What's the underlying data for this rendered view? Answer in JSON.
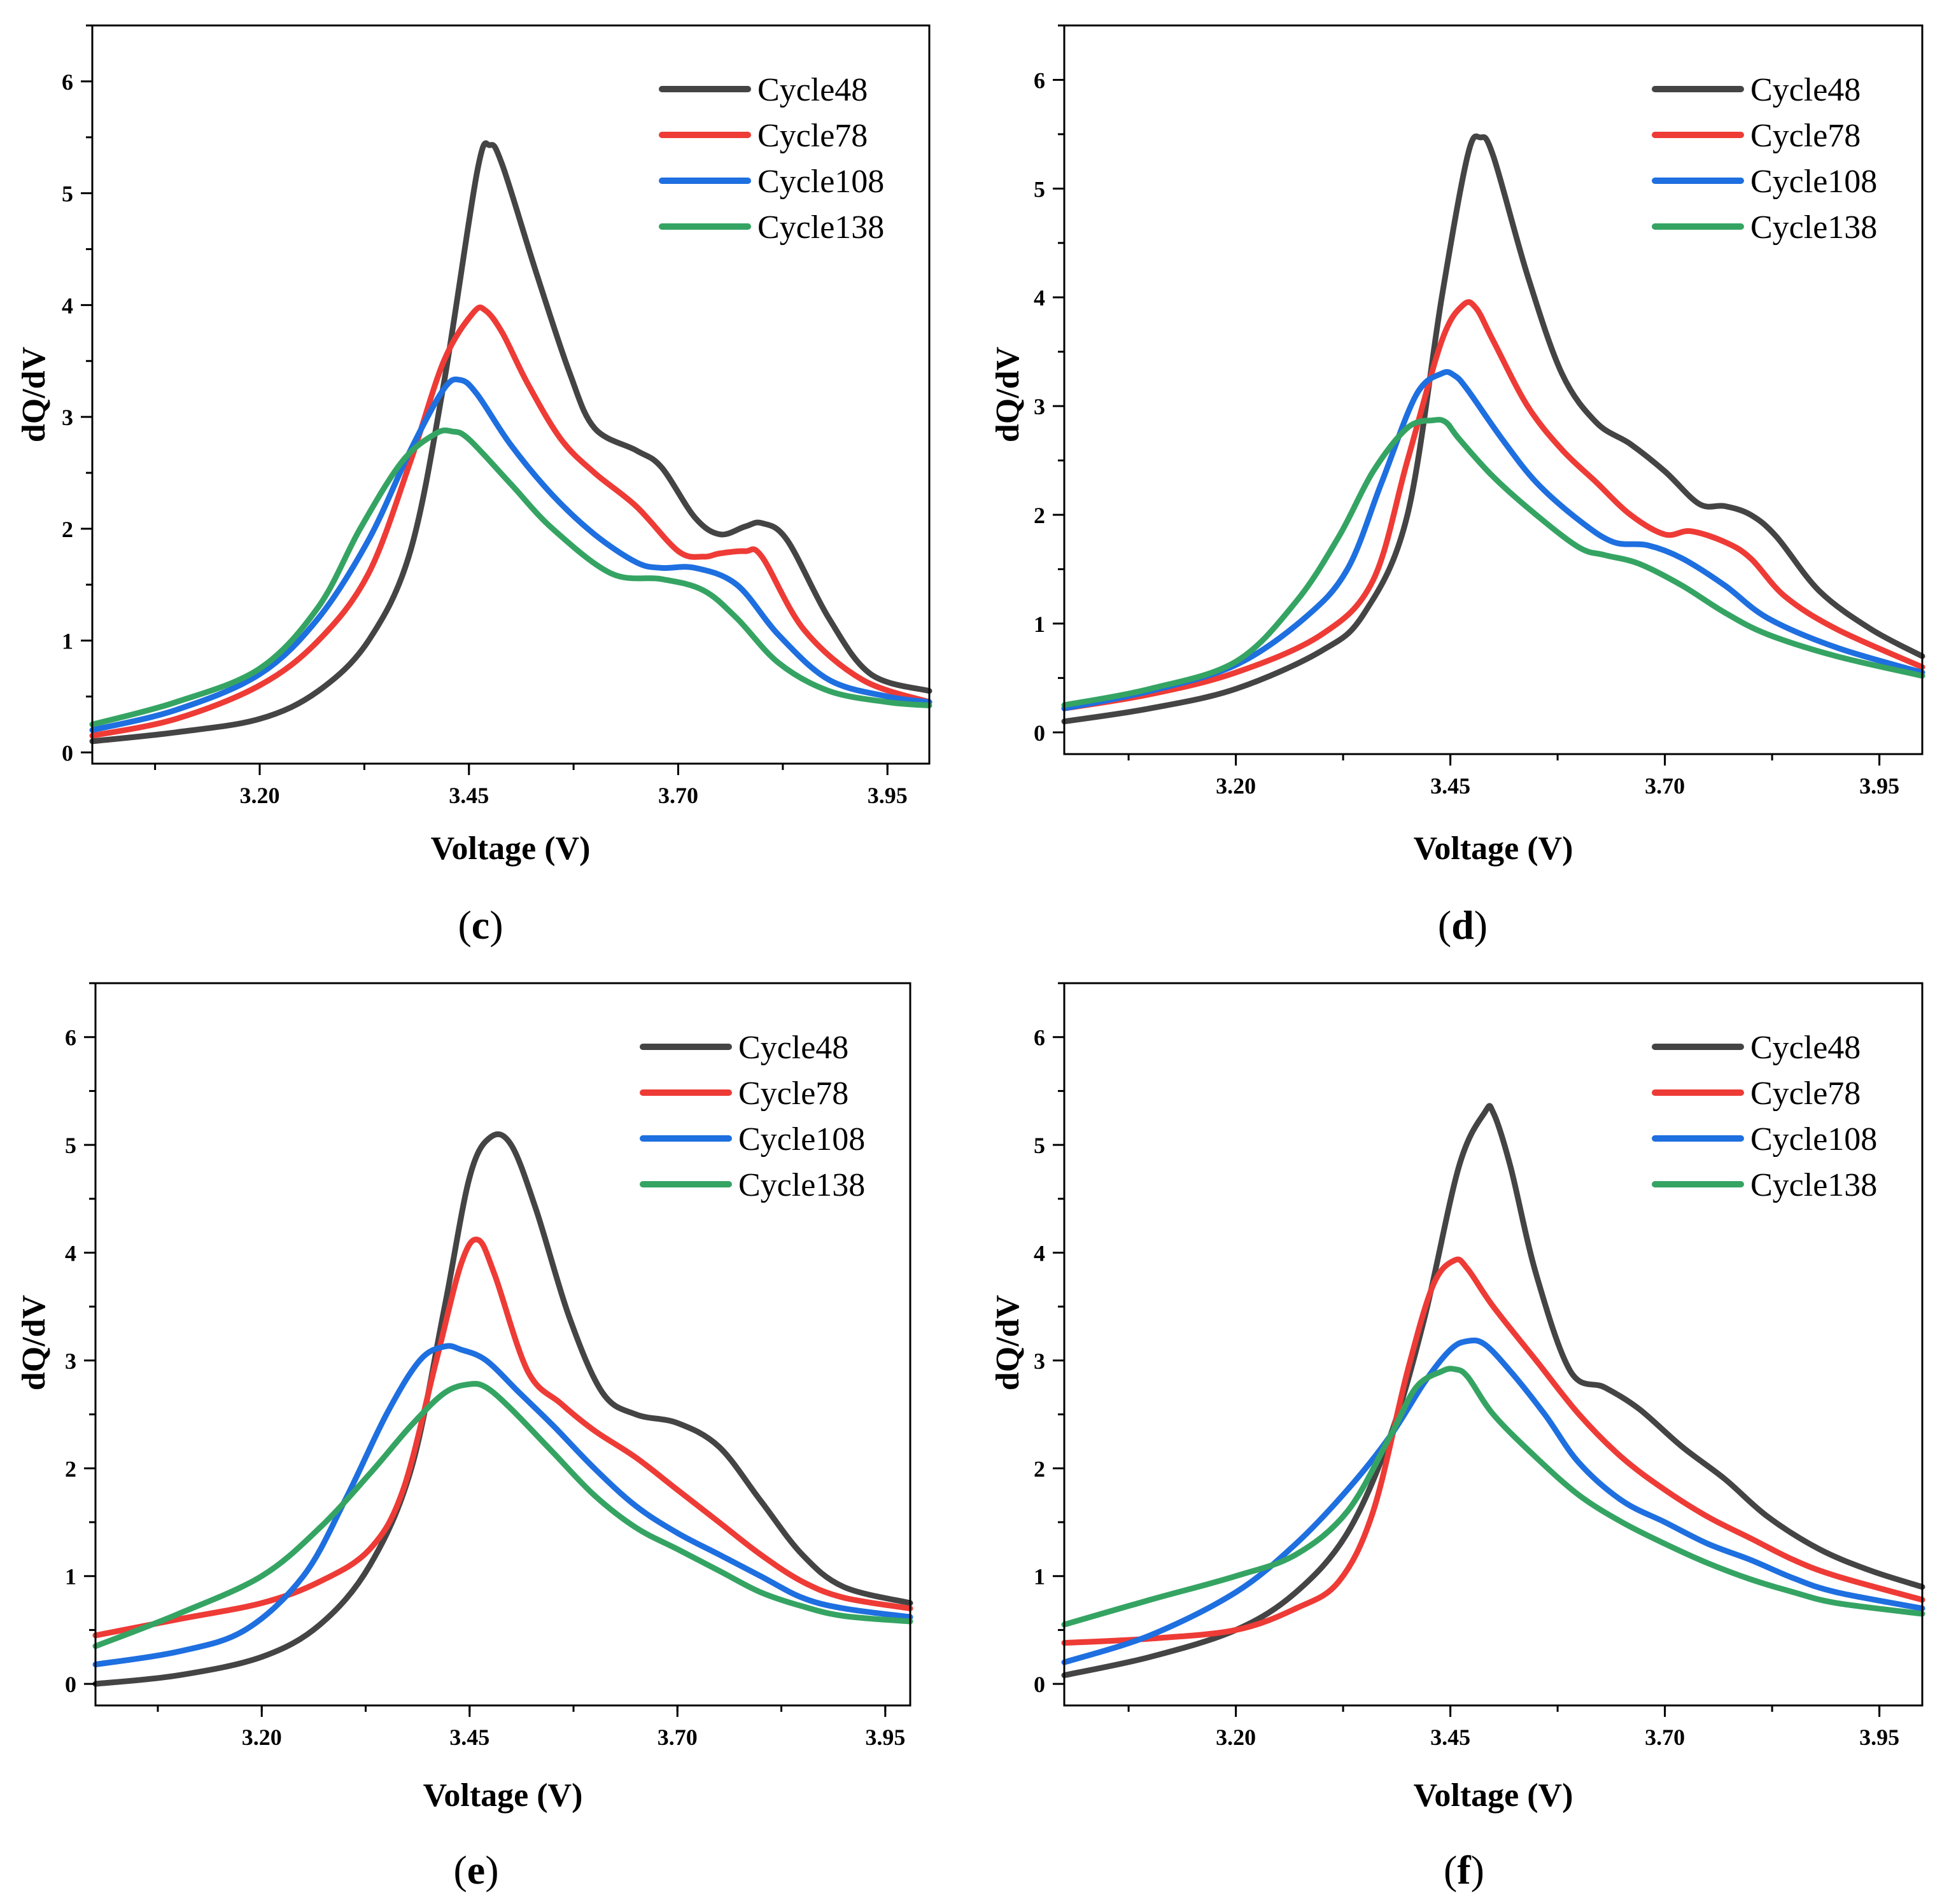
{
  "colors": {
    "Cycle48": "#444444",
    "Cycle78": "#ee3b36",
    "Cycle108": "#1e6fe0",
    "Cycle138": "#35a463"
  },
  "chart_data": [
    {
      "type": "line",
      "panel_label": "c",
      "xlabel": "Voltage (V)",
      "ylabel": "dQ/dV",
      "xlim": [
        3.0,
        4.0
      ],
      "ylim": [
        -0.1,
        6.5
      ],
      "xticks": [
        "3.20",
        "3.45",
        "3.70",
        "3.95"
      ],
      "yticks": [
        "0",
        "1",
        "2",
        "3",
        "4",
        "5",
        "6"
      ],
      "legend_position": "top-right",
      "series": [
        {
          "name": "Cycle48",
          "x": [
            3.0,
            3.1,
            3.2,
            3.27,
            3.33,
            3.38,
            3.42,
            3.46,
            3.475,
            3.49,
            3.53,
            3.57,
            3.6,
            3.65,
            3.68,
            3.72,
            3.75,
            3.78,
            3.8,
            3.83,
            3.88,
            3.93,
            4.0
          ],
          "y": [
            0.1,
            0.18,
            0.3,
            0.55,
            1.0,
            1.8,
            3.3,
            5.2,
            5.43,
            5.25,
            4.3,
            3.4,
            2.9,
            2.7,
            2.55,
            2.1,
            1.95,
            2.02,
            2.05,
            1.9,
            1.2,
            0.7,
            0.55
          ]
        },
        {
          "name": "Cycle78",
          "x": [
            3.0,
            3.1,
            3.2,
            3.27,
            3.33,
            3.38,
            3.42,
            3.455,
            3.47,
            3.49,
            3.52,
            3.56,
            3.6,
            3.65,
            3.7,
            3.73,
            3.75,
            3.78,
            3.8,
            3.85,
            3.92,
            4.0
          ],
          "y": [
            0.15,
            0.3,
            0.6,
            1.0,
            1.6,
            2.6,
            3.5,
            3.93,
            3.95,
            3.75,
            3.3,
            2.8,
            2.5,
            2.2,
            1.8,
            1.75,
            1.78,
            1.8,
            1.75,
            1.1,
            0.65,
            0.45
          ]
        },
        {
          "name": "Cycle108",
          "x": [
            3.0,
            3.1,
            3.2,
            3.27,
            3.33,
            3.38,
            3.42,
            3.44,
            3.46,
            3.5,
            3.55,
            3.6,
            3.65,
            3.68,
            3.72,
            3.77,
            3.82,
            3.88,
            3.95,
            4.0
          ],
          "y": [
            0.2,
            0.38,
            0.7,
            1.2,
            1.9,
            2.7,
            3.25,
            3.33,
            3.2,
            2.75,
            2.3,
            1.95,
            1.7,
            1.65,
            1.65,
            1.5,
            1.05,
            0.65,
            0.5,
            0.45
          ]
        },
        {
          "name": "Cycle138",
          "x": [
            3.0,
            3.1,
            3.2,
            3.27,
            3.32,
            3.37,
            3.41,
            3.43,
            3.45,
            3.5,
            3.55,
            3.62,
            3.68,
            3.73,
            3.77,
            3.82,
            3.88,
            3.95,
            4.0
          ],
          "y": [
            0.25,
            0.45,
            0.75,
            1.3,
            2.0,
            2.6,
            2.85,
            2.87,
            2.8,
            2.4,
            2.0,
            1.6,
            1.55,
            1.45,
            1.2,
            0.8,
            0.55,
            0.45,
            0.42
          ]
        }
      ]
    },
    {
      "type": "line",
      "panel_label": "d",
      "xlabel": "Voltage (V)",
      "ylabel": "dQ/dV",
      "xlim": [
        3.0,
        4.0
      ],
      "ylim": [
        -0.2,
        6.5
      ],
      "xticks": [
        "3.20",
        "3.45",
        "3.70",
        "3.95"
      ],
      "yticks": [
        "0",
        "1",
        "2",
        "3",
        "4",
        "5",
        "6"
      ],
      "legend_position": "top-right",
      "series": [
        {
          "name": "Cycle48",
          "x": [
            3.0,
            3.1,
            3.2,
            3.3,
            3.35,
            3.4,
            3.44,
            3.47,
            3.485,
            3.5,
            3.54,
            3.58,
            3.62,
            3.66,
            3.7,
            3.74,
            3.77,
            3.8,
            3.83,
            3.88,
            3.94,
            4.0
          ],
          "y": [
            0.1,
            0.22,
            0.4,
            0.75,
            1.1,
            2.0,
            4.0,
            5.3,
            5.47,
            5.3,
            4.2,
            3.3,
            2.85,
            2.65,
            2.4,
            2.1,
            2.08,
            2.0,
            1.8,
            1.3,
            0.95,
            0.7
          ]
        },
        {
          "name": "Cycle78",
          "x": [
            3.0,
            3.1,
            3.2,
            3.3,
            3.36,
            3.4,
            3.44,
            3.465,
            3.48,
            3.5,
            3.54,
            3.58,
            3.62,
            3.66,
            3.7,
            3.73,
            3.77,
            3.8,
            3.84,
            3.9,
            4.0
          ],
          "y": [
            0.22,
            0.35,
            0.55,
            0.9,
            1.4,
            2.5,
            3.6,
            3.93,
            3.9,
            3.6,
            3.0,
            2.6,
            2.3,
            2.0,
            1.82,
            1.85,
            1.75,
            1.6,
            1.25,
            0.95,
            0.6
          ]
        },
        {
          "name": "Cycle108",
          "x": [
            3.0,
            3.1,
            3.2,
            3.28,
            3.33,
            3.37,
            3.41,
            3.44,
            3.455,
            3.47,
            3.51,
            3.55,
            3.6,
            3.64,
            3.68,
            3.72,
            3.77,
            3.82,
            3.9,
            4.0
          ],
          "y": [
            0.22,
            0.38,
            0.62,
            1.05,
            1.5,
            2.3,
            3.1,
            3.3,
            3.28,
            3.15,
            2.7,
            2.3,
            1.95,
            1.75,
            1.72,
            1.6,
            1.35,
            1.05,
            0.78,
            0.55
          ]
        },
        {
          "name": "Cycle138",
          "x": [
            3.0,
            3.1,
            3.2,
            3.27,
            3.32,
            3.36,
            3.4,
            3.43,
            3.445,
            3.46,
            3.5,
            3.55,
            3.6,
            3.63,
            3.67,
            3.72,
            3.77,
            3.82,
            3.9,
            4.0
          ],
          "y": [
            0.25,
            0.4,
            0.65,
            1.2,
            1.8,
            2.4,
            2.8,
            2.87,
            2.85,
            2.7,
            2.35,
            2.0,
            1.7,
            1.63,
            1.55,
            1.35,
            1.1,
            0.9,
            0.7,
            0.52
          ]
        }
      ]
    },
    {
      "type": "line",
      "panel_label": "e",
      "xlabel": "Voltage (V)",
      "ylabel": "dQ/dV",
      "xlim": [
        3.0,
        3.98
      ],
      "ylim": [
        -0.2,
        6.5
      ],
      "xticks": [
        "3.20",
        "3.45",
        "3.70",
        "3.95"
      ],
      "yticks": [
        "0",
        "1",
        "2",
        "3",
        "4",
        "5",
        "6"
      ],
      "legend_position": "top-right",
      "series": [
        {
          "name": "Cycle48",
          "x": [
            3.0,
            3.1,
            3.2,
            3.27,
            3.33,
            3.38,
            3.42,
            3.45,
            3.475,
            3.5,
            3.53,
            3.57,
            3.61,
            3.65,
            3.7,
            3.75,
            3.8,
            3.85,
            3.9,
            3.98
          ],
          "y": [
            0.0,
            0.08,
            0.25,
            0.55,
            1.1,
            2.0,
            3.5,
            4.7,
            5.07,
            5.0,
            4.4,
            3.4,
            2.7,
            2.5,
            2.42,
            2.2,
            1.7,
            1.2,
            0.9,
            0.75
          ]
        },
        {
          "name": "Cycle78",
          "x": [
            3.0,
            3.1,
            3.2,
            3.27,
            3.33,
            3.37,
            3.41,
            3.44,
            3.46,
            3.48,
            3.52,
            3.56,
            3.6,
            3.65,
            3.7,
            3.75,
            3.8,
            3.85,
            3.9,
            3.98
          ],
          "y": [
            0.45,
            0.6,
            0.75,
            0.95,
            1.25,
            1.8,
            3.0,
            3.9,
            4.12,
            3.8,
            2.9,
            2.6,
            2.35,
            2.1,
            1.8,
            1.5,
            1.2,
            0.95,
            0.8,
            0.7
          ]
        },
        {
          "name": "Cycle108",
          "x": [
            3.0,
            3.1,
            3.18,
            3.25,
            3.3,
            3.35,
            3.39,
            3.42,
            3.44,
            3.47,
            3.51,
            3.55,
            3.6,
            3.65,
            3.7,
            3.75,
            3.8,
            3.85,
            3.9,
            3.98
          ],
          "y": [
            0.18,
            0.3,
            0.5,
            1.0,
            1.7,
            2.5,
            3.0,
            3.13,
            3.1,
            3.0,
            2.7,
            2.4,
            2.0,
            1.65,
            1.4,
            1.2,
            1.0,
            0.8,
            0.7,
            0.62
          ]
        },
        {
          "name": "Cycle138",
          "x": [
            3.0,
            3.1,
            3.2,
            3.27,
            3.33,
            3.38,
            3.42,
            3.45,
            3.47,
            3.5,
            3.55,
            3.6,
            3.65,
            3.7,
            3.75,
            3.8,
            3.85,
            3.9,
            3.98
          ],
          "y": [
            0.35,
            0.65,
            1.0,
            1.45,
            1.95,
            2.4,
            2.7,
            2.78,
            2.75,
            2.55,
            2.15,
            1.75,
            1.45,
            1.25,
            1.05,
            0.85,
            0.72,
            0.63,
            0.58
          ]
        }
      ]
    },
    {
      "type": "line",
      "panel_label": "f",
      "xlabel": "Voltage (V)",
      "ylabel": "dQ/dV",
      "xlim": [
        3.0,
        4.0
      ],
      "ylim": [
        -0.2,
        6.5
      ],
      "xticks": [
        "3.20",
        "3.45",
        "3.70",
        "3.95"
      ],
      "yticks": [
        "0",
        "1",
        "2",
        "3",
        "4",
        "5",
        "6"
      ],
      "legend_position": "top-right",
      "series": [
        {
          "name": "Cycle48",
          "x": [
            3.0,
            3.1,
            3.2,
            3.27,
            3.33,
            3.38,
            3.42,
            3.46,
            3.49,
            3.5,
            3.52,
            3.55,
            3.59,
            3.63,
            3.67,
            3.72,
            3.77,
            3.82,
            3.88,
            3.94,
            4.0
          ],
          "y": [
            0.08,
            0.25,
            0.5,
            0.85,
            1.4,
            2.3,
            3.4,
            4.8,
            5.3,
            5.3,
            4.8,
            3.8,
            2.9,
            2.75,
            2.55,
            2.2,
            1.9,
            1.55,
            1.25,
            1.05,
            0.9
          ]
        },
        {
          "name": "Cycle78",
          "x": [
            3.0,
            3.1,
            3.2,
            3.27,
            3.32,
            3.36,
            3.4,
            3.43,
            3.455,
            3.47,
            3.5,
            3.55,
            3.6,
            3.65,
            3.7,
            3.75,
            3.8,
            3.85,
            3.9,
            4.0
          ],
          "y": [
            0.38,
            0.42,
            0.5,
            0.7,
            0.95,
            1.6,
            2.9,
            3.7,
            3.93,
            3.85,
            3.5,
            3.0,
            2.5,
            2.1,
            1.8,
            1.55,
            1.35,
            1.15,
            1.0,
            0.78
          ]
        },
        {
          "name": "Cycle108",
          "x": [
            3.0,
            3.1,
            3.2,
            3.27,
            3.33,
            3.38,
            3.42,
            3.45,
            3.47,
            3.49,
            3.52,
            3.56,
            3.6,
            3.65,
            3.7,
            3.75,
            3.8,
            3.85,
            3.9,
            4.0
          ],
          "y": [
            0.2,
            0.45,
            0.85,
            1.3,
            1.8,
            2.3,
            2.8,
            3.1,
            3.18,
            3.15,
            2.9,
            2.5,
            2.05,
            1.7,
            1.5,
            1.3,
            1.15,
            0.98,
            0.85,
            0.7
          ]
        },
        {
          "name": "Cycle138",
          "x": [
            3.0,
            3.1,
            3.2,
            3.27,
            3.33,
            3.38,
            3.41,
            3.44,
            3.455,
            3.47,
            3.5,
            3.55,
            3.6,
            3.65,
            3.7,
            3.75,
            3.8,
            3.85,
            3.9,
            4.0
          ],
          "y": [
            0.55,
            0.78,
            1.0,
            1.2,
            1.6,
            2.3,
            2.75,
            2.9,
            2.92,
            2.85,
            2.5,
            2.1,
            1.75,
            1.5,
            1.3,
            1.12,
            0.97,
            0.85,
            0.75,
            0.65
          ]
        }
      ]
    }
  ]
}
